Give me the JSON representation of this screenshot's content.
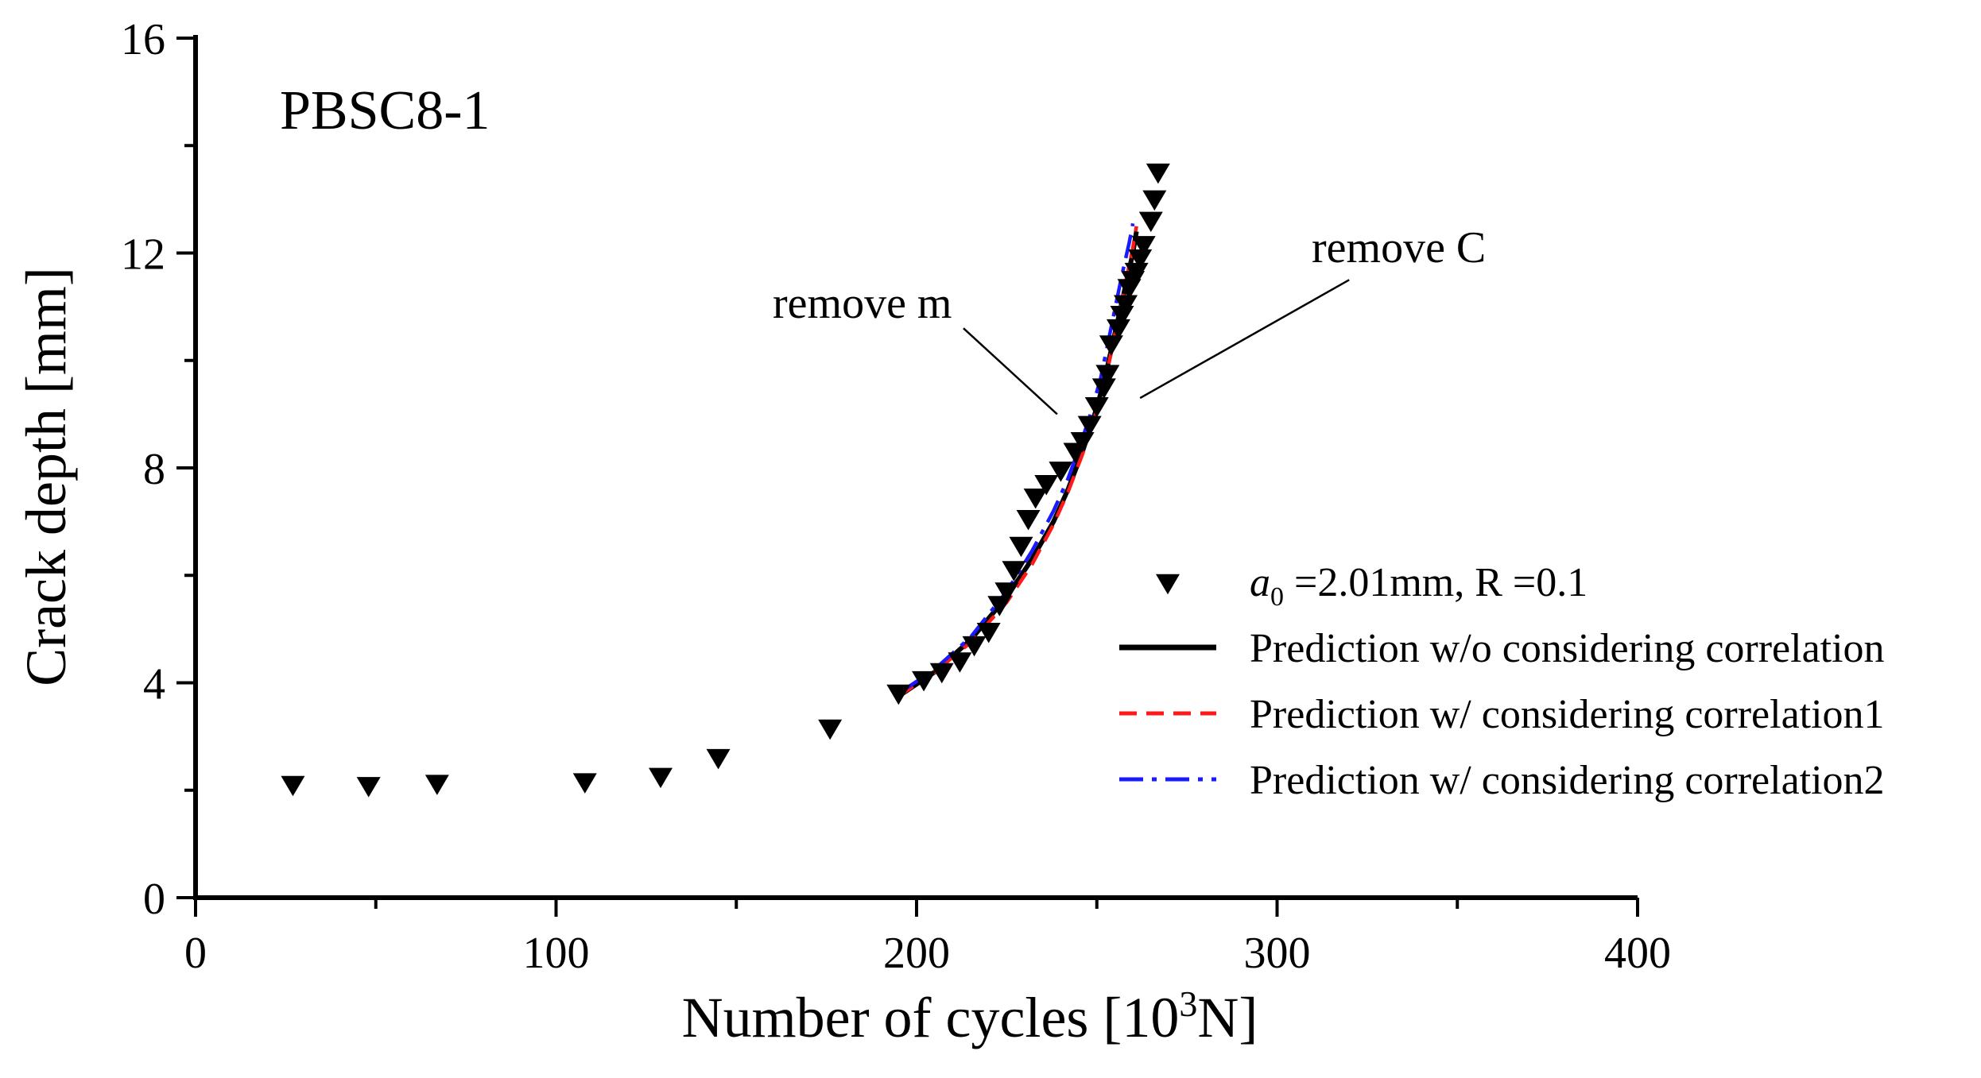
{
  "chart_data": {
    "type": "scatter",
    "panel_label": "PBSC8-1",
    "xlabel": "Number of cycles [10",
    "xlabel_sup": "3",
    "xlabel_end": "N]",
    "ylabel": "Crack depth [mm]",
    "xlim": [
      0,
      400
    ],
    "ylim": [
      0,
      16
    ],
    "x_ticks": [
      0,
      100,
      200,
      300,
      400
    ],
    "y_ticks": [
      0,
      4,
      8,
      12,
      16
    ],
    "x_tick_labels": [
      "0",
      "100",
      "200",
      "300",
      "400"
    ],
    "y_tick_labels": [
      "0",
      "4",
      "8",
      "12",
      "16"
    ],
    "annotations": [
      {
        "text": "remove m",
        "line_from": [
          213,
          10.6
        ],
        "line_to": [
          239,
          9.0
        ],
        "label_at": [
          188,
          11.0
        ]
      },
      {
        "text": "remove C",
        "line_from": [
          320,
          11.5
        ],
        "line_to": [
          262,
          9.3
        ],
        "label_at": [
          311,
          12.0
        ]
      }
    ],
    "legend_position": "right",
    "series": [
      {
        "name": "a0 =2.01mm, R =0.1",
        "label_italic": "a",
        "label_sub": "0",
        "label_rest": " =2.01mm, R =0.1",
        "kind": "marker",
        "color": "#000000",
        "points": [
          [
            27,
            2.1
          ],
          [
            48,
            2.08
          ],
          [
            67,
            2.12
          ],
          [
            108,
            2.15
          ],
          [
            129,
            2.25
          ],
          [
            145,
            2.6
          ],
          [
            176,
            3.15
          ],
          [
            195,
            3.8
          ],
          [
            202,
            4.05
          ],
          [
            207,
            4.2
          ],
          [
            212,
            4.4
          ],
          [
            216,
            4.7
          ],
          [
            220,
            4.95
          ],
          [
            223,
            5.45
          ],
          [
            225,
            5.7
          ],
          [
            227,
            6.1
          ],
          [
            229,
            6.55
          ],
          [
            231,
            7.05
          ],
          [
            233,
            7.45
          ],
          [
            236,
            7.7
          ],
          [
            240,
            7.95
          ],
          [
            244,
            8.3
          ],
          [
            246,
            8.5
          ],
          [
            248,
            8.8
          ],
          [
            250,
            9.15
          ],
          [
            252,
            9.5
          ],
          [
            253,
            9.75
          ],
          [
            254,
            10.3
          ],
          [
            256,
            10.6
          ],
          [
            257,
            10.85
          ],
          [
            258,
            11.05
          ],
          [
            259,
            11.35
          ],
          [
            260,
            11.5
          ],
          [
            261,
            11.65
          ],
          [
            262,
            11.9
          ],
          [
            263,
            12.15
          ],
          [
            265,
            12.6
          ],
          [
            266,
            13.0
          ],
          [
            267,
            13.5
          ]
        ]
      },
      {
        "name": "Prediction w/o considering correlation",
        "kind": "line",
        "style": "solid",
        "color": "#000000",
        "points": [
          [
            195,
            3.75
          ],
          [
            205,
            4.2
          ],
          [
            215,
            4.8
          ],
          [
            225,
            5.6
          ],
          [
            232,
            6.3
          ],
          [
            238,
            7.0
          ],
          [
            242,
            7.6
          ],
          [
            246,
            8.3
          ],
          [
            249,
            8.9
          ],
          [
            252,
            9.6
          ],
          [
            254,
            10.2
          ],
          [
            256,
            10.8
          ],
          [
            258,
            11.4
          ],
          [
            260,
            12.0
          ],
          [
            261,
            12.4
          ]
        ]
      },
      {
        "name": "Prediction w/ considering correlation1",
        "kind": "line",
        "style": "dashed",
        "color": "#ff1a1a",
        "points": [
          [
            195,
            3.75
          ],
          [
            205,
            4.2
          ],
          [
            215,
            4.75
          ],
          [
            225,
            5.5
          ],
          [
            232,
            6.2
          ],
          [
            238,
            6.95
          ],
          [
            242,
            7.55
          ],
          [
            246,
            8.25
          ],
          [
            249,
            8.85
          ],
          [
            252,
            9.55
          ],
          [
            254,
            10.15
          ],
          [
            256,
            10.8
          ],
          [
            258,
            11.45
          ],
          [
            260,
            12.1
          ],
          [
            261,
            12.5
          ]
        ]
      },
      {
        "name": "Prediction w/ considering correlation2",
        "kind": "line",
        "style": "dashdot",
        "color": "#1a1aff",
        "points": [
          [
            195,
            3.8
          ],
          [
            205,
            4.25
          ],
          [
            215,
            4.85
          ],
          [
            225,
            5.7
          ],
          [
            232,
            6.45
          ],
          [
            238,
            7.2
          ],
          [
            242,
            7.8
          ],
          [
            245,
            8.35
          ],
          [
            248,
            8.95
          ],
          [
            251,
            9.65
          ],
          [
            253,
            10.3
          ],
          [
            255,
            10.95
          ],
          [
            257,
            11.6
          ],
          [
            259,
            12.2
          ],
          [
            260,
            12.55
          ]
        ]
      }
    ]
  }
}
